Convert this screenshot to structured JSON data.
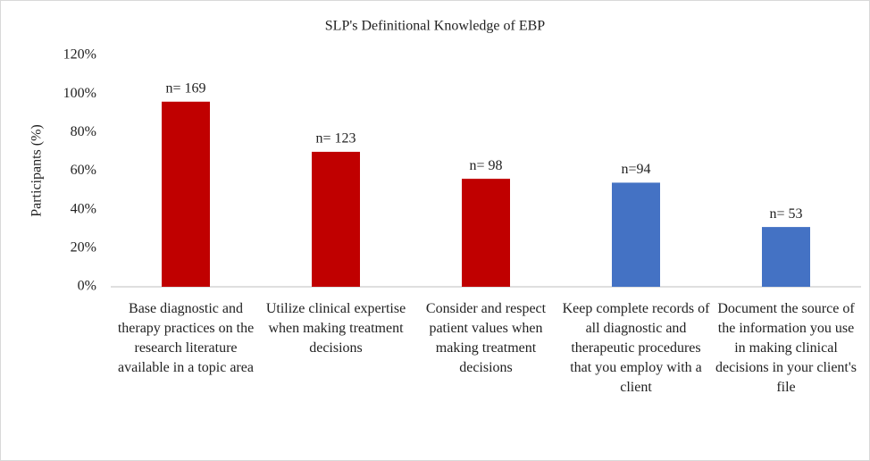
{
  "chart_data": {
    "type": "bar",
    "title": "SLP's Definitional Knowledge of EBP",
    "y_label": "Participants (%)",
    "categories": [
      "Base diagnostic and therapy practices on the research literature available in a topic area",
      "Utilize clinical expertise when making treatment decisions",
      "Consider and respect patient values when making treatment decisions",
      "Keep complete records of all diagnostic and therapeutic procedures that you employ with a client",
      "Document the source of the information you use in making clinical decisions in your client's file"
    ],
    "values": [
      96,
      70,
      56,
      54,
      31
    ],
    "colors": [
      "#c00000",
      "#c00000",
      "#c00000",
      "#4472c4",
      "#4472c4"
    ],
    "annotations": [
      "n= 169",
      "n= 123",
      "n= 98",
      "n=94",
      "n= 53"
    ],
    "ylim": [
      0,
      120
    ],
    "yticks": [
      {
        "value": 0,
        "label": "0%"
      },
      {
        "value": 20,
        "label": "20%"
      },
      {
        "value": 40,
        "label": "40%"
      },
      {
        "value": 60,
        "label": "60%"
      },
      {
        "value": 80,
        "label": "80%"
      },
      {
        "value": 100,
        "label": "100%"
      },
      {
        "value": 120,
        "label": "120%"
      }
    ],
    "grid": false
  }
}
